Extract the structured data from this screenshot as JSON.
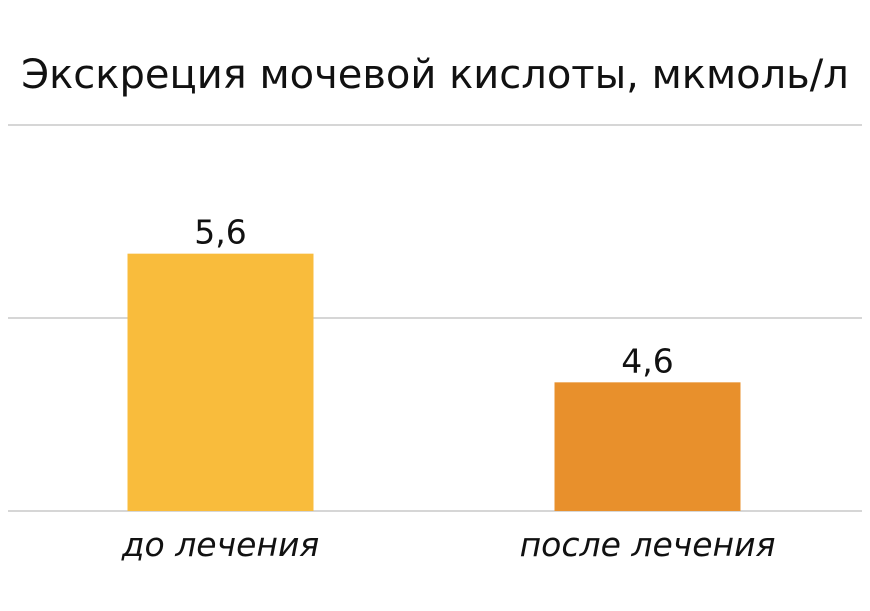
{
  "chart_data": {
    "type": "bar",
    "title": "Экскреция мочевой кислоты, мкмоль/л",
    "categories": [
      "до лечения",
      "после лечения"
    ],
    "values": [
      5.6,
      4.6
    ],
    "value_labels": [
      "5,6",
      "4,6"
    ],
    "colors": [
      "#F9BC3C",
      "#E8902C"
    ],
    "ylim": [
      3.6,
      6.6
    ],
    "grid": true,
    "gridlines": [
      3.6,
      5.1,
      6.6
    ]
  }
}
